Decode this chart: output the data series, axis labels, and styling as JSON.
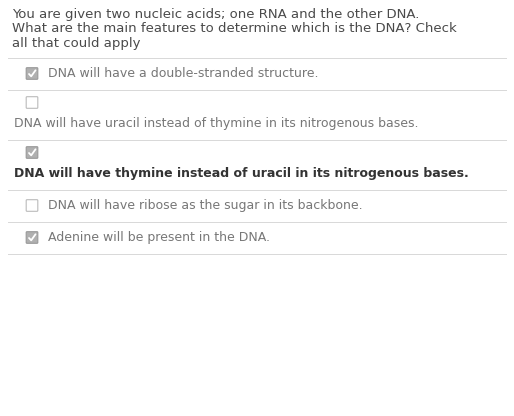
{
  "bg_color": "#ffffff",
  "question_lines": [
    "You are given two nucleic acids; one RNA and the other DNA.",
    "What are the main features to determine which is the DNA? Check",
    "all that could apply"
  ],
  "question_fontsize": 9.5,
  "question_color": "#4a4a4a",
  "options": [
    {
      "text": "DNA will have a double-stranded structure.",
      "checked": true,
      "bold": false,
      "two_line": false
    },
    {
      "text": "DNA will have uracil instead of thymine in its nitrogenous bases.",
      "checked": false,
      "bold": false,
      "two_line": true
    },
    {
      "text": "DNA will have thymine instead of uracil in its nitrogenous bases.",
      "checked": true,
      "bold": true,
      "two_line": true
    },
    {
      "text": "DNA will have ribose as the sugar in its backbone.",
      "checked": false,
      "bold": false,
      "two_line": false
    },
    {
      "text": "Adenine will be present in the DNA.",
      "checked": true,
      "bold": false,
      "two_line": false
    }
  ],
  "option_fontsize": 9.0,
  "checked_box_fill": "#b0b0b0",
  "checked_box_edge": "#999999",
  "unchecked_box_fill": "#ffffff",
  "unchecked_box_edge": "#bbbbbb",
  "check_color": "#ffffff",
  "normal_text_color": "#777777",
  "bold_text_color": "#333333",
  "divider_color": "#d8d8d8",
  "fig_width": 5.14,
  "fig_height": 4.16,
  "dpi": 100
}
